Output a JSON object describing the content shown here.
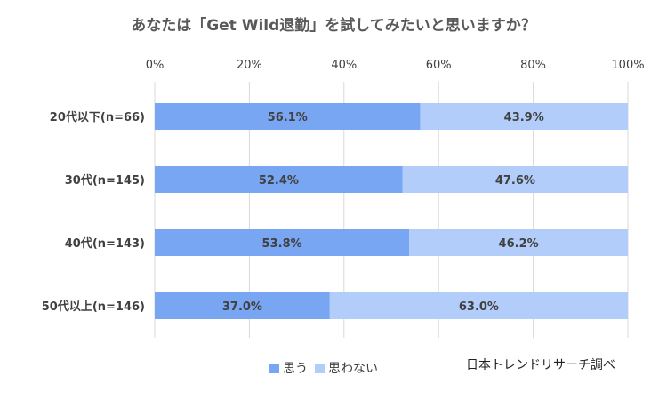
{
  "chart_data": {
    "type": "bar",
    "orientation": "horizontal",
    "stacked": true,
    "percent": true,
    "title": "あなたは「Get Wild退勤」を試してみたいと思いますか？",
    "categories": [
      "20代以下(n=66)",
      "30代(n=145)",
      "40代(n=143)",
      "50代以上(n=146)"
    ],
    "series": [
      {
        "name": "思う",
        "values": [
          56.1,
          52.4,
          53.8,
          37.0
        ],
        "color": "#79a6f2"
      },
      {
        "name": "思わない",
        "values": [
          43.9,
          47.6,
          46.2,
          63.0
        ],
        "color": "#b3cdfa"
      }
    ],
    "data_labels": [
      [
        "56.1%",
        "52.4%",
        "53.8%",
        "37.0%"
      ],
      [
        "43.9%",
        "47.6%",
        "46.2%",
        "63.0%"
      ]
    ],
    "xlim": [
      0,
      100
    ],
    "xticks": [
      0,
      20,
      40,
      60,
      80,
      100
    ],
    "xtick_labels": [
      "0%",
      "20%",
      "40%",
      "60%",
      "80%",
      "100%"
    ],
    "x_axis_position": "top",
    "grid": true,
    "legend_position": "bottom"
  },
  "source_note": "日本トレンドリサーチ調べ"
}
